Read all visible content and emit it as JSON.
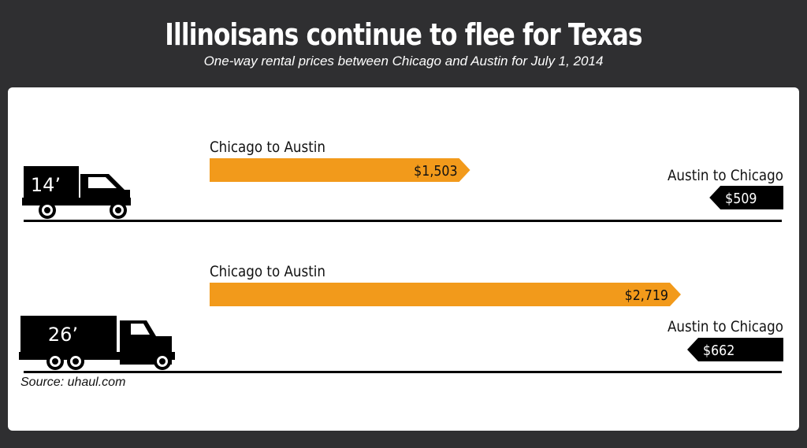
{
  "header": {
    "title": "Illinoisans continue to flee for Texas",
    "subtitle": "One-way rental prices between Chicago and Austin for July 1, 2014"
  },
  "footer": {
    "source": "Source: uhaul.com"
  },
  "colors": {
    "background": "#2f2f31",
    "orange": "#f29a1b",
    "black": "#000000",
    "panel": "#ffffff"
  },
  "chart_data": {
    "type": "bar",
    "categories": [
      "14’",
      "26’"
    ],
    "series": [
      {
        "name": "Chicago to Austin",
        "values": [
          1503,
          2719
        ],
        "labels": [
          "$1,503",
          "$2,719"
        ]
      },
      {
        "name": "Austin to Chicago",
        "values": [
          509,
          662
        ],
        "labels": [
          "$509",
          "$662"
        ]
      }
    ],
    "truck_icons": [
      "truck-icon",
      "truck-icon"
    ]
  }
}
